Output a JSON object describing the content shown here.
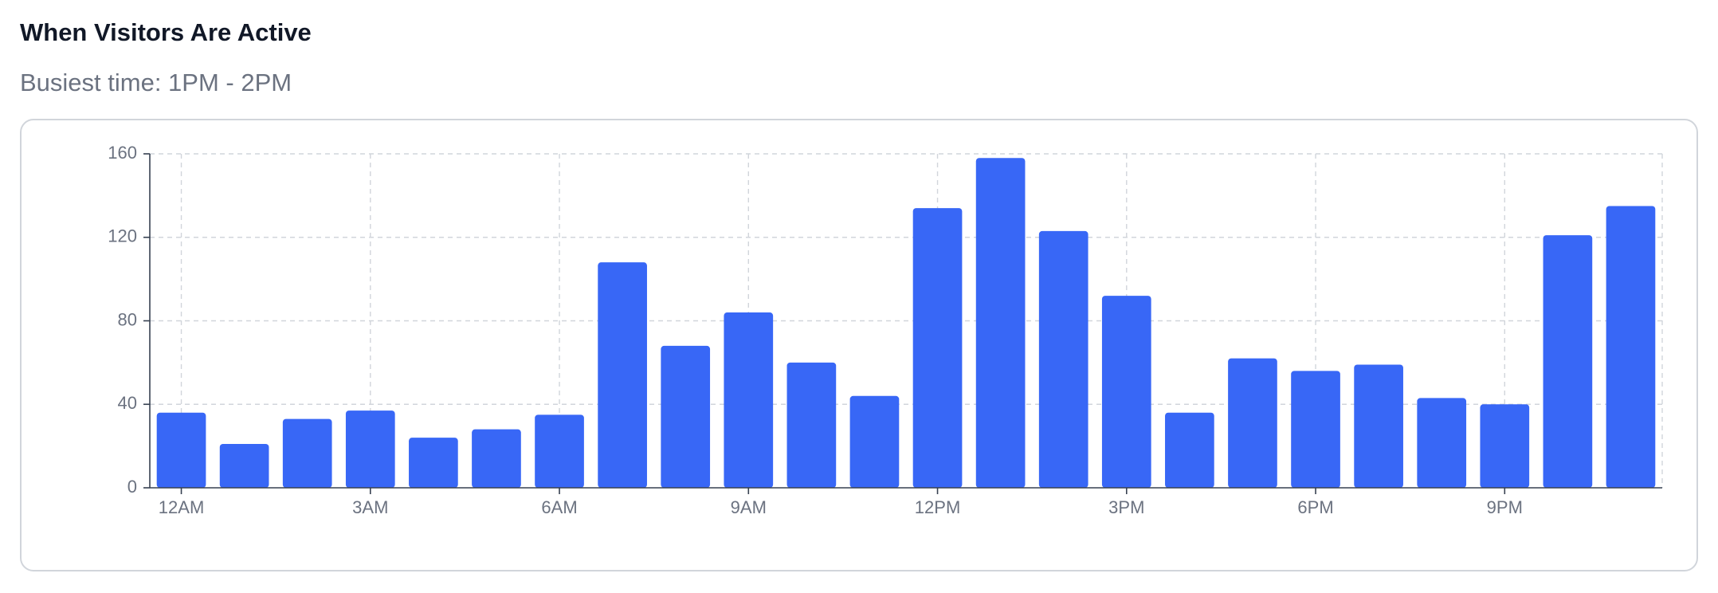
{
  "chart_data": {
    "type": "bar",
    "title": "When Visitors Are Active",
    "subtitle": "Busiest time: 1PM - 2PM",
    "categories": [
      "12AM",
      null,
      null,
      "3AM",
      null,
      null,
      "6AM",
      null,
      null,
      "9AM",
      null,
      null,
      "12PM",
      null,
      null,
      "3PM",
      null,
      null,
      "6PM",
      null,
      null,
      "9PM",
      null,
      null
    ],
    "values": [
      36,
      21,
      33,
      37,
      24,
      28,
      35,
      108,
      68,
      84,
      60,
      44,
      134,
      158,
      123,
      92,
      36,
      62,
      56,
      59,
      43,
      40,
      121,
      135
    ],
    "color": "#3867f6",
    "ylim": [
      0,
      160
    ],
    "yticks": [
      0,
      40,
      80,
      120,
      160
    ],
    "grid": true
  }
}
